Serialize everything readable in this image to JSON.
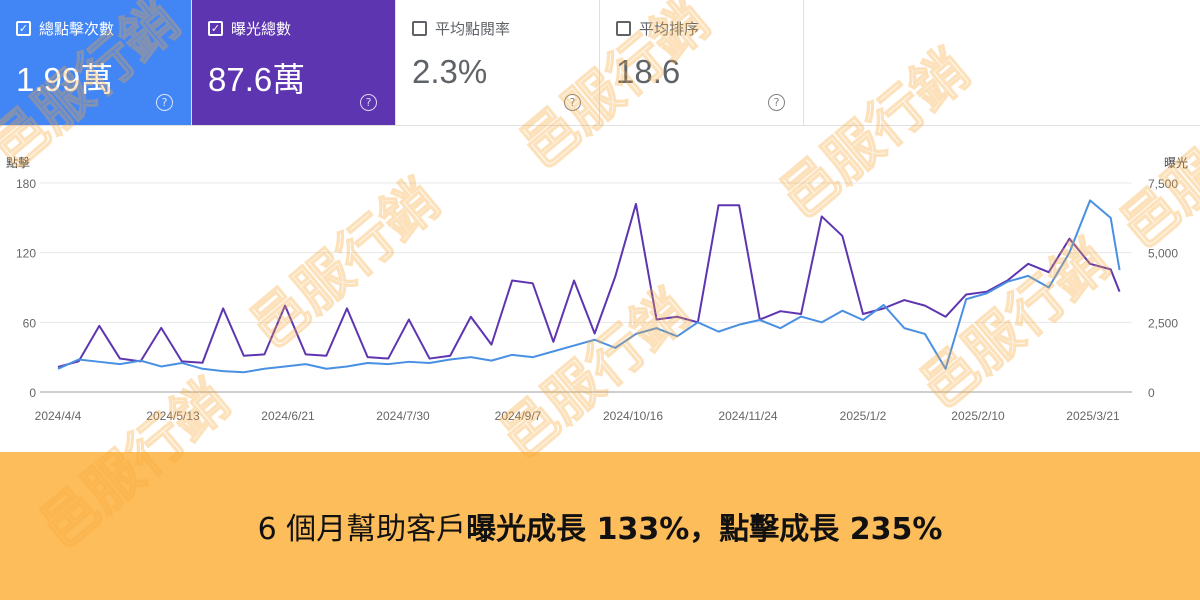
{
  "cards": [
    {
      "label": "總點擊次數",
      "value": "1.99萬",
      "checked": true,
      "color": "#4285f4"
    },
    {
      "label": "曝光總數",
      "value": "87.6萬",
      "checked": true,
      "color": "#5e35b1"
    },
    {
      "label": "平均點閱率",
      "value": "2.3%",
      "checked": false
    },
    {
      "label": "平均排序",
      "value": "18.6",
      "checked": false
    }
  ],
  "help_icon": "?",
  "watermark": "邑服行銷",
  "banner": {
    "prefix": "6 個月幫助客戶",
    "bold": "曝光成長 133%，點擊成長 235%"
  },
  "chart_data": {
    "type": "line",
    "left_axis": {
      "label": "點擊",
      "ticks": [
        "180",
        "120",
        "60",
        "0"
      ],
      "range": [
        0,
        180
      ]
    },
    "right_axis": {
      "label": "曝光",
      "ticks": [
        "7,500",
        "5,000",
        "2,500",
        "0"
      ],
      "range": [
        0,
        7500
      ]
    },
    "x_ticks": [
      "2024/4/4",
      "2024/5/13",
      "2024/6/21",
      "2024/7/30",
      "2024/9/7",
      "2024/10/16",
      "2024/11/24",
      "2025/1/2",
      "2025/2/10",
      "2025/3/21"
    ],
    "grid": true,
    "x": [
      "2024/4/4",
      "2024/4/11",
      "2024/4/18",
      "2024/4/25",
      "2024/5/2",
      "2024/5/9",
      "2024/5/16",
      "2024/5/23",
      "2024/5/30",
      "2024/6/6",
      "2024/6/13",
      "2024/6/20",
      "2024/6/27",
      "2024/7/4",
      "2024/7/11",
      "2024/7/18",
      "2024/7/25",
      "2024/8/1",
      "2024/8/8",
      "2024/8/15",
      "2024/8/22",
      "2024/8/29",
      "2024/9/5",
      "2024/9/12",
      "2024/9/19",
      "2024/9/26",
      "2024/10/3",
      "2024/10/10",
      "2024/10/17",
      "2024/10/24",
      "2024/10/31",
      "2024/11/7",
      "2024/11/14",
      "2024/11/21",
      "2024/11/28",
      "2024/12/5",
      "2024/12/12",
      "2024/12/19",
      "2024/12/26",
      "2025/1/2",
      "2025/1/9",
      "2025/1/16",
      "2025/1/23",
      "2025/1/30",
      "2025/2/6",
      "2025/2/13",
      "2025/2/20",
      "2025/2/27",
      "2025/3/6",
      "2025/3/13",
      "2025/3/20",
      "2025/3/27",
      "2025/3/30"
    ],
    "series": [
      {
        "name": "總點擊次數",
        "axis": "left",
        "color": "#4a90e2",
        "values": [
          20,
          28,
          26,
          24,
          27,
          22,
          25,
          20,
          18,
          17,
          20,
          22,
          24,
          20,
          22,
          25,
          24,
          26,
          25,
          28,
          30,
          27,
          32,
          30,
          35,
          40,
          45,
          38,
          50,
          55,
          48,
          60,
          52,
          58,
          62,
          55,
          65,
          60,
          70,
          62,
          75,
          55,
          50,
          20,
          80,
          85,
          95,
          100,
          90,
          120,
          165,
          150,
          105
        ]
      },
      {
        "name": "曝光總數",
        "axis": "right",
        "color": "#5e35b1",
        "values": [
          900,
          1100,
          2375,
          1200,
          1100,
          2300,
          1100,
          1050,
          3000,
          1300,
          1350,
          3100,
          1350,
          1300,
          3000,
          1250,
          1200,
          2600,
          1200,
          1300,
          2700,
          1700,
          4000,
          3900,
          1800,
          4000,
          2100,
          4150,
          6750,
          2600,
          2700,
          2500,
          6700,
          6700,
          2600,
          2900,
          2800,
          6300,
          5600,
          2800,
          3000,
          3300,
          3100,
          2700,
          3500,
          3600,
          4000,
          4600,
          4300,
          5500,
          4600,
          4400,
          3600
        ]
      }
    ]
  }
}
